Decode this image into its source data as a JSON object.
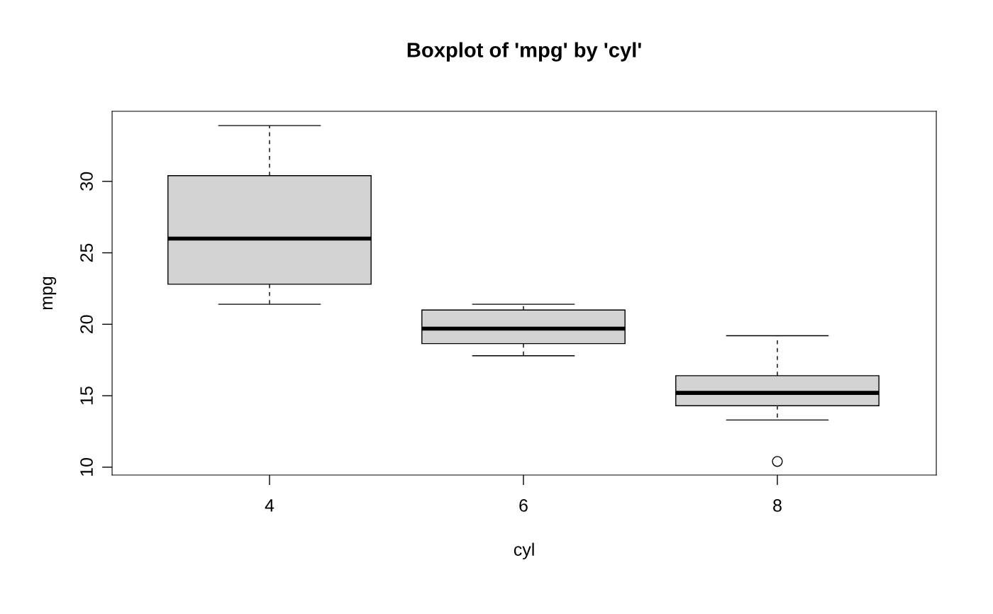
{
  "chart_data": {
    "type": "box",
    "title": "Boxplot of 'mpg' by 'cyl'",
    "xlabel": "cyl",
    "ylabel": "mpg",
    "categories": [
      "4",
      "6",
      "8"
    ],
    "boxes": [
      {
        "low": 21.4,
        "q1": 22.8,
        "median": 26.0,
        "q3": 30.4,
        "high": 33.9
      },
      {
        "low": 17.8,
        "q1": 18.65,
        "median": 19.7,
        "q3": 21.0,
        "high": 21.4
      },
      {
        "low": 13.3,
        "q1": 14.3,
        "median": 15.2,
        "q3": 16.4,
        "high": 19.2,
        "outliers": [
          10.4
        ]
      }
    ],
    "color": "#d3d3d3",
    "ylim": [
      9.45,
      34.9
    ],
    "yticks": [
      10,
      15,
      20,
      25,
      30
    ]
  }
}
